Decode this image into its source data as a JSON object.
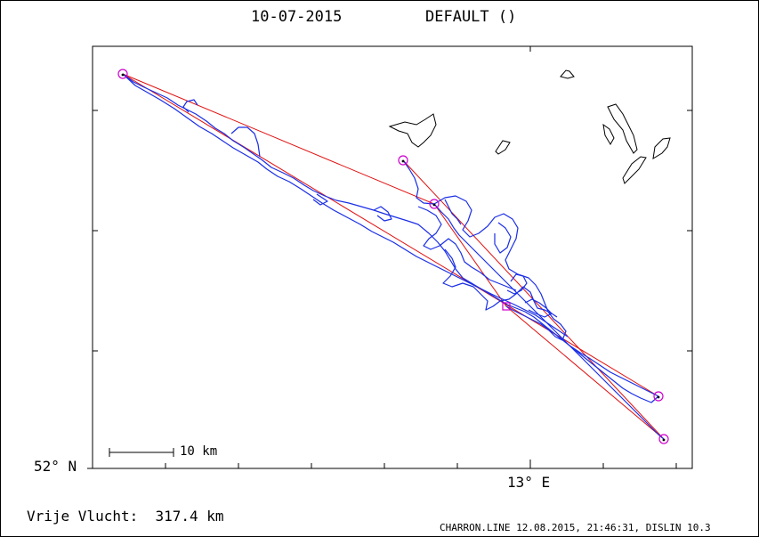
{
  "title": {
    "date": "10-07-2015",
    "name": "DEFAULT ()"
  },
  "axes": {
    "lat_label": "52° N",
    "lon_label": "13° E"
  },
  "scale_bar": {
    "label": "10 km"
  },
  "flight": {
    "distance_label": "Vrije Vlucht:",
    "distance_value": "317.4 km"
  },
  "footer": "CHARRON.LINE 12.08.2015, 21:46:31, DISLIN 10.3",
  "colors": {
    "track": "#1a2ee6",
    "route": "#e01010",
    "turnpoint": "#cc00cc",
    "land": "#000000"
  }
}
